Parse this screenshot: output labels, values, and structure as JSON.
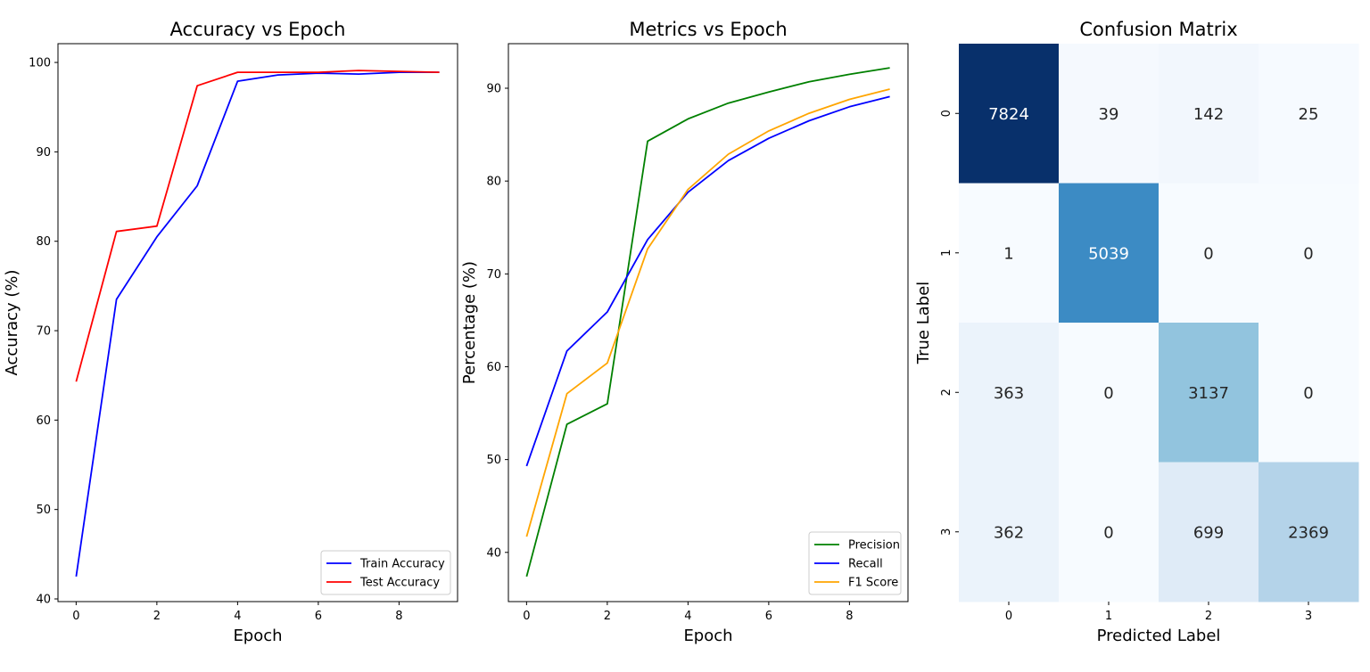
{
  "chart_data": [
    {
      "type": "line",
      "title": "Accuracy vs Epoch",
      "xlabel": "Epoch",
      "ylabel": "Accuracy (%)",
      "xlim": [
        -0.45,
        9.45
      ],
      "ylim": [
        39.7,
        102.1
      ],
      "xticks": [
        0,
        2,
        4,
        6,
        8
      ],
      "yticks": [
        40,
        50,
        60,
        70,
        80,
        90,
        100
      ],
      "legend_position": "lower-right",
      "x": [
        0,
        1,
        2,
        3,
        4,
        5,
        6,
        7,
        8,
        9
      ],
      "series": [
        {
          "name": "Train Accuracy",
          "color": "#0000ff",
          "values": [
            42.5,
            73.5,
            80.5,
            86.2,
            97.9,
            98.6,
            98.8,
            98.7,
            98.9,
            98.9
          ]
        },
        {
          "name": "Test Accuracy",
          "color": "#ff0000",
          "values": [
            64.3,
            81.1,
            81.7,
            97.4,
            98.9,
            98.9,
            98.9,
            99.1,
            99.0,
            98.9
          ]
        }
      ]
    },
    {
      "type": "line",
      "title": "Metrics vs Epoch",
      "xlabel": "Epoch",
      "ylabel": "Percentage (%)",
      "xlim": [
        -0.45,
        9.45
      ],
      "ylim": [
        34.7,
        94.8
      ],
      "xticks": [
        0,
        2,
        4,
        6,
        8
      ],
      "yticks": [
        40,
        50,
        60,
        70,
        80,
        90
      ],
      "legend_position": "lower-right",
      "x": [
        0,
        1,
        2,
        3,
        4,
        5,
        6,
        7,
        8,
        9
      ],
      "series": [
        {
          "name": "Precision",
          "color": "#008000",
          "values": [
            37.4,
            53.8,
            56.0,
            84.3,
            86.7,
            88.4,
            89.6,
            90.7,
            91.5,
            92.2
          ]
        },
        {
          "name": "Recall",
          "color": "#0000ff",
          "values": [
            49.3,
            61.7,
            65.9,
            73.7,
            78.8,
            82.2,
            84.6,
            86.5,
            88.0,
            89.1
          ]
        },
        {
          "name": "F1 Score",
          "color": "#ffa500",
          "values": [
            41.7,
            57.1,
            60.4,
            72.7,
            79.1,
            82.9,
            85.4,
            87.3,
            88.8,
            89.9
          ]
        }
      ]
    },
    {
      "type": "heatmap",
      "title": "Confusion Matrix",
      "xlabel": "Predicted Label",
      "ylabel": "True Label",
      "x_categories": [
        "0",
        "1",
        "2",
        "3"
      ],
      "y_categories": [
        "0",
        "1",
        "2",
        "3"
      ],
      "colormap": "Blues",
      "matrix": [
        [
          7824,
          39,
          142,
          25
        ],
        [
          1,
          5039,
          0,
          0
        ],
        [
          363,
          0,
          3137,
          0
        ],
        [
          362,
          0,
          699,
          2369
        ]
      ],
      "cell_colors": [
        [
          "#08306b",
          "#f5f9fe",
          "#f2f7fd",
          "#f6faff"
        ],
        [
          "#f7fbff",
          "#3c8bc4",
          "#f7fbff",
          "#f7fbff"
        ],
        [
          "#ebf3fb",
          "#f7fbff",
          "#92c4de",
          "#f7fbff"
        ],
        [
          "#ebf3fb",
          "#f7fbff",
          "#dfebf7",
          "#b4d3e9"
        ]
      ]
    }
  ]
}
